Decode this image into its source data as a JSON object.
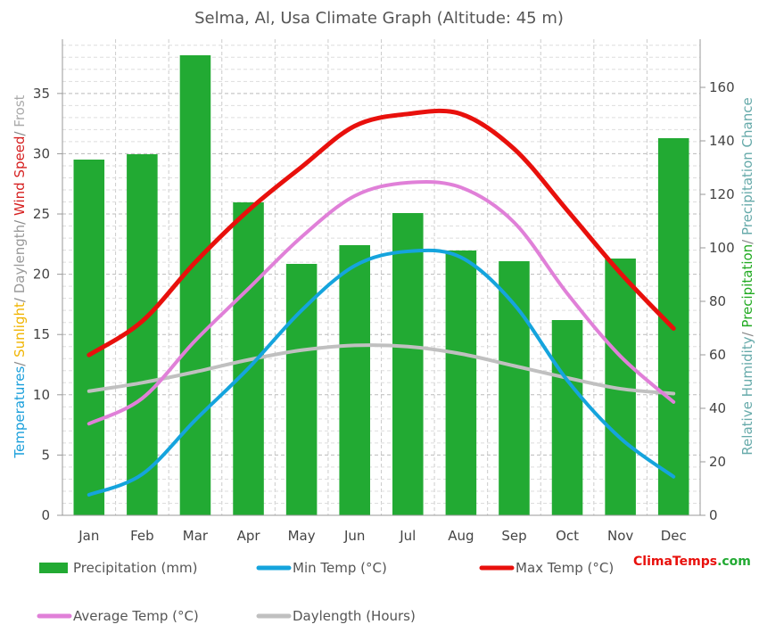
{
  "chart_data": {
    "type": "bar",
    "title": "Selma, Al, Usa Climate Graph (Altitude: 45 m)",
    "categories": [
      "Jan",
      "Feb",
      "Mar",
      "Apr",
      "May",
      "Jun",
      "Jul",
      "Aug",
      "Sep",
      "Oct",
      "Nov",
      "Dec"
    ],
    "y_left": {
      "ylim": [
        0,
        39.5
      ],
      "ticks": [
        0,
        5,
        10,
        15,
        20,
        25,
        30,
        35
      ],
      "label_parts": [
        {
          "text": "Temperatures",
          "color": "#1a9fdb"
        },
        {
          "text": "/ ",
          "color": "#888888"
        },
        {
          "text": "Sunlight",
          "color": "#f0b400"
        },
        {
          "text": "/ ",
          "color": "#888888"
        },
        {
          "text": "Daylength",
          "color": "#999999"
        },
        {
          "text": "/ ",
          "color": "#888888"
        },
        {
          "text": "Wind Speed",
          "color": "#d62020"
        },
        {
          "text": "/ ",
          "color": "#888888"
        },
        {
          "text": "Frost",
          "color": "#aaaaaa"
        }
      ]
    },
    "y_right": {
      "ylim": [
        0,
        178
      ],
      "ticks": [
        0,
        20,
        40,
        60,
        80,
        100,
        120,
        140,
        160
      ],
      "label_parts": [
        {
          "text": "Relative Humidity",
          "color": "#66aaaa"
        },
        {
          "text": "/ ",
          "color": "#888888"
        },
        {
          "text": "Precipitation",
          "color": "#22aa22"
        },
        {
          "text": "/ ",
          "color": "#888888"
        },
        {
          "text": "Precipitation Chance",
          "color": "#66aaaa"
        }
      ]
    },
    "series": [
      {
        "name": "Precipitation (mm)",
        "type": "bar",
        "axis": "right",
        "color": "#22aa33",
        "values": [
          133,
          135,
          172,
          117,
          94,
          101,
          113,
          99,
          95,
          73,
          96,
          141
        ]
      },
      {
        "name": "Min Temp (°C)",
        "type": "line",
        "axis": "left",
        "color": "#15a4dd",
        "values": [
          1.7,
          3.4,
          7.9,
          12.2,
          17.0,
          20.7,
          21.9,
          21.4,
          17.5,
          11.2,
          6.4,
          3.2
        ]
      },
      {
        "name": "Max Temp (°C)",
        "type": "line",
        "axis": "left",
        "color": "#e8100c",
        "values": [
          13.3,
          16.1,
          21.0,
          25.3,
          28.9,
          32.3,
          33.3,
          33.3,
          30.4,
          25.3,
          20.1,
          15.5
        ]
      },
      {
        "name": "Average Temp (°C)",
        "type": "line",
        "axis": "left",
        "color": "#e080d8",
        "values": [
          7.6,
          9.7,
          14.5,
          18.8,
          23.1,
          26.5,
          27.6,
          27.2,
          24.3,
          18.4,
          13.2,
          9.4
        ]
      },
      {
        "name": "Daylength (Hours)",
        "type": "line",
        "axis": "left",
        "color": "#c0c0c0",
        "values": [
          10.3,
          11.0,
          11.9,
          12.9,
          13.7,
          14.1,
          14.0,
          13.4,
          12.4,
          11.4,
          10.5,
          10.1
        ]
      }
    ],
    "grid": true,
    "legend": {
      "placement": "bottom"
    }
  },
  "brand": {
    "part1": "Clima",
    "part2": "Temps",
    "part3": ".com",
    "color1": "#e8100c",
    "color2": "#e8100c",
    "color3": "#22aa33"
  }
}
